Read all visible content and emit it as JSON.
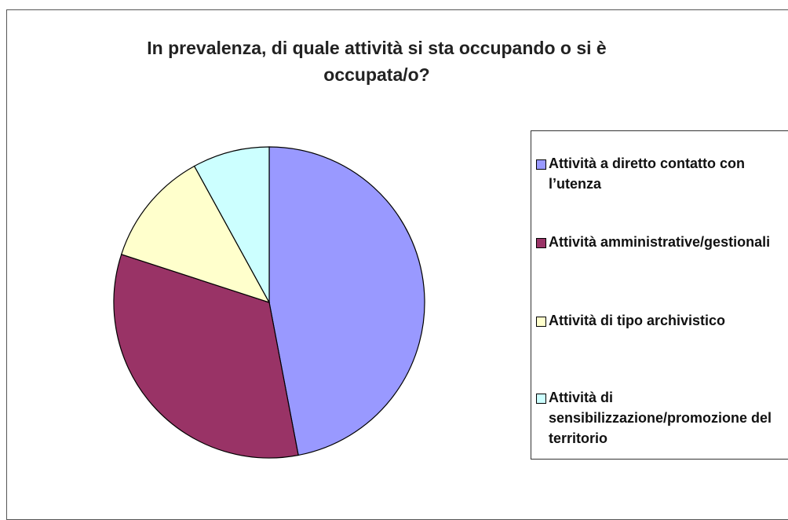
{
  "chart_data": {
    "type": "pie",
    "title": "In prevalenza, di quale attività si sta occupando o si è occupata/o?",
    "categories": [
      "Attività a diretto contatto con l’utenza",
      "Attività amministrative/gestionali",
      "Attività di tipo archivistico",
      "Attività di sensibilizzazione/promozione del territorio"
    ],
    "values": [
      47,
      33,
      12,
      8
    ],
    "colors": [
      "#9999ff",
      "#993366",
      "#ffffcc",
      "#ccffff"
    ],
    "legend": "right"
  }
}
